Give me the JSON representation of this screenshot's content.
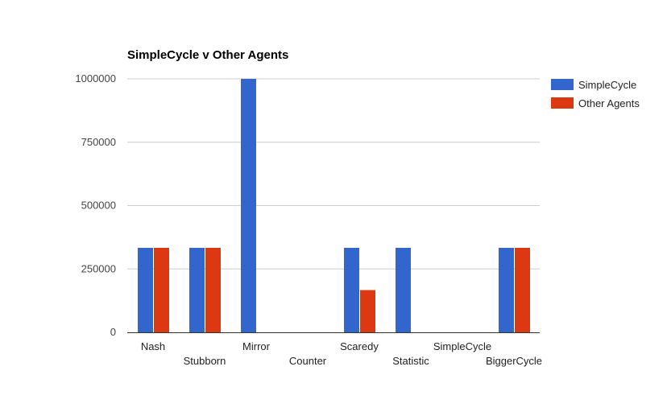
{
  "chart_data": {
    "type": "bar",
    "title": "SimpleCycle v Other Agents",
    "categories": [
      "Nash",
      "Stubborn",
      "Mirror",
      "Counter",
      "Scaredy",
      "Statistic",
      "SimpleCycle",
      "BiggerCycle"
    ],
    "series": [
      {
        "name": "SimpleCycle",
        "color": "#3366cc",
        "values": [
          333333,
          333333,
          1000000,
          0,
          333333,
          333333,
          0,
          333333
        ]
      },
      {
        "name": "Other Agents",
        "color": "#dc3912",
        "values": [
          333333,
          333333,
          0,
          0,
          166667,
          0,
          0,
          333333
        ]
      }
    ],
    "ylim": [
      0,
      1000000
    ],
    "yticks": [
      {
        "value": 0,
        "label": "0"
      },
      {
        "value": 250000,
        "label": "250000"
      },
      {
        "value": 500000,
        "label": "500000"
      },
      {
        "value": 750000,
        "label": "750000"
      },
      {
        "value": 1000000,
        "label": "1000000"
      }
    ],
    "grid": true,
    "legend_position": "right",
    "xlabel": "",
    "ylabel": ""
  }
}
